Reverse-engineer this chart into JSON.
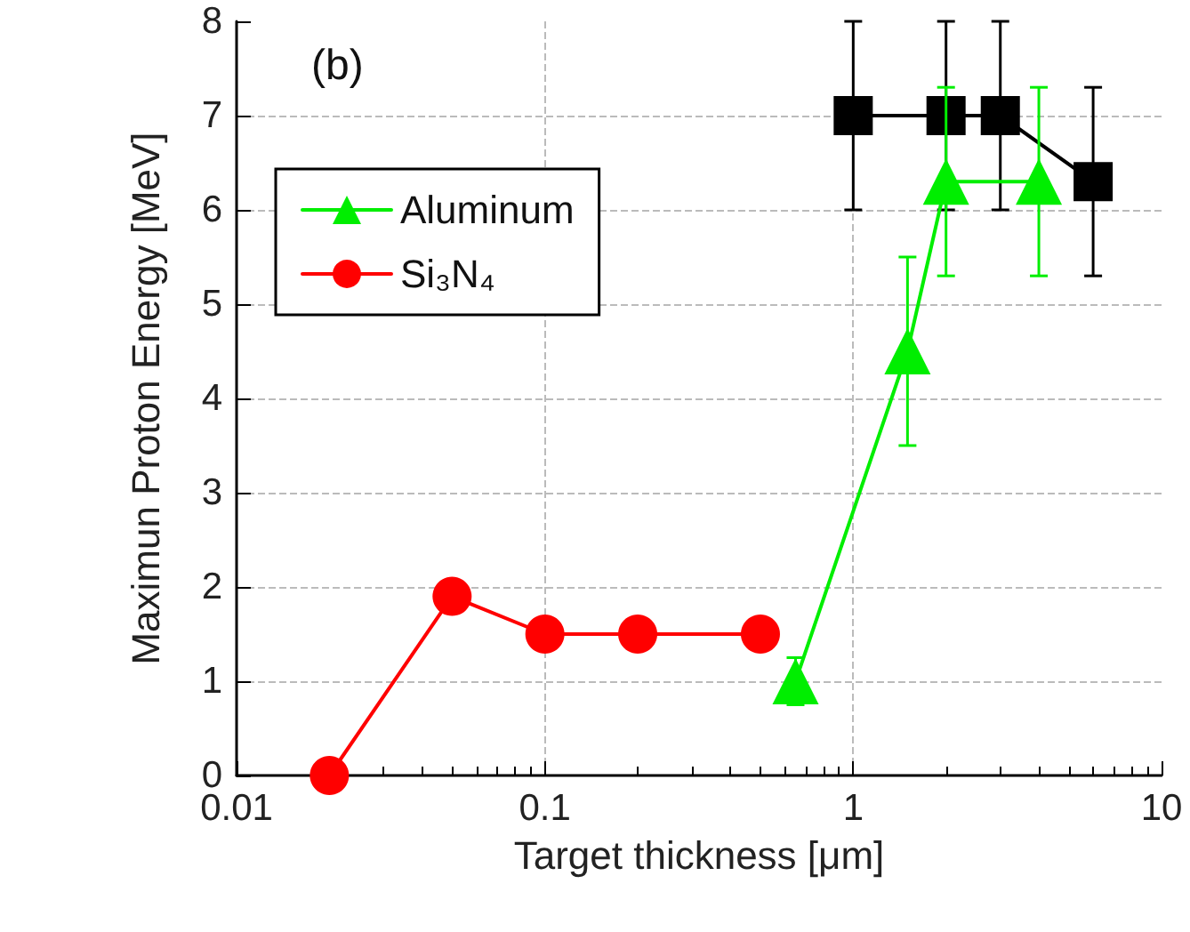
{
  "chart_data": {
    "type": "line",
    "title": "(b)",
    "xlabel": "Target thickness [μm]",
    "ylabel": "Maximun Proton Energy [MeV]",
    "log": "x",
    "xlim": [
      0.01,
      10
    ],
    "xticks": [
      0.01,
      0.1,
      1,
      10
    ],
    "ylim": [
      0,
      8
    ],
    "yticks": [
      0,
      1,
      2,
      3,
      4,
      5,
      6,
      7,
      8
    ],
    "grid": true,
    "legend": "top left",
    "series": [
      {
        "color": "#000000",
        "marker": "square",
        "x": [
          1,
          2,
          3,
          6
        ],
        "values": [
          7,
          7,
          7,
          6.3
        ],
        "errors": [
          1,
          1,
          1,
          1
        ]
      },
      {
        "name": "Aluminum",
        "color": "#00ee00",
        "marker": "triangle",
        "x": [
          0.65,
          1.5,
          2,
          4
        ],
        "values": [
          1,
          4.5,
          6.3,
          6.3
        ],
        "errors": [
          0.25,
          1,
          1,
          1
        ]
      },
      {
        "name": "Si₃N₄",
        "color": "#ff0000",
        "marker": "circle",
        "x": [
          0.02,
          0.05,
          0.1,
          0.2,
          0.5
        ],
        "values": [
          0,
          1.9,
          1.5,
          1.5,
          1.5
        ]
      }
    ]
  }
}
